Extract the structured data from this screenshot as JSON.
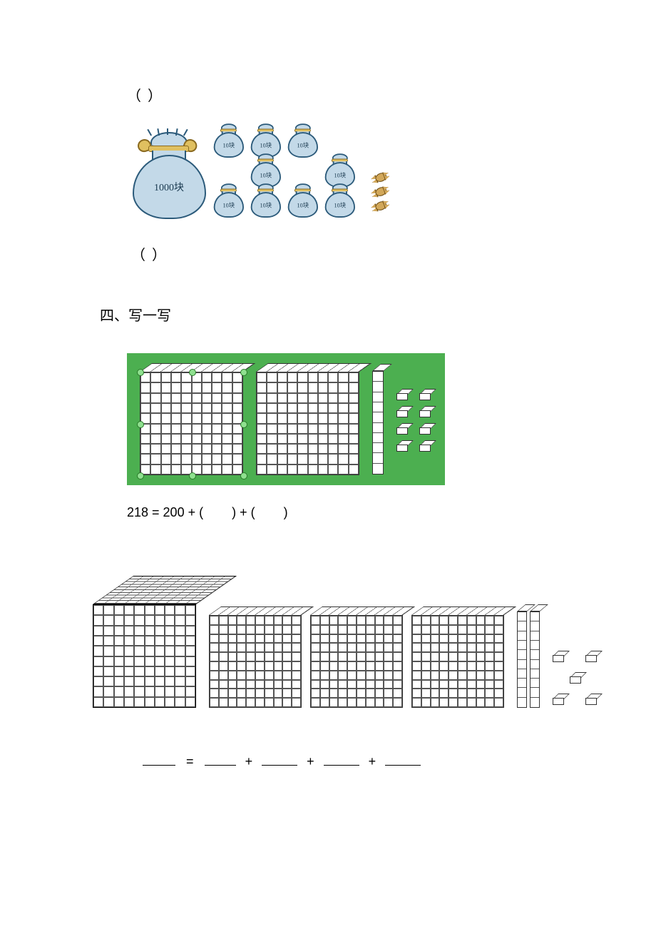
{
  "fill_blank": "（   ）",
  "bags": {
    "big_label": "1000块",
    "small_label": "10块",
    "big_count": 1,
    "small_count": 9,
    "candy_count": 3,
    "bag_fill": "#c3d9e8",
    "bag_stroke": "#2b5a7a",
    "tie_fill": "#e0c060",
    "tie_stroke": "#8a6a20",
    "candy_fill": "#d2a85a",
    "candy_stroke": "#6a4a10"
  },
  "section4": {
    "title": "四、写一写"
  },
  "q1": {
    "panel_bg": "#4caf50",
    "hundreds": 2,
    "tens_rods": 1,
    "unit_rows": 4,
    "unit_cols": 2,
    "equation_prefix": "218 = 200 + (",
    "equation_mid": ")  + (",
    "equation_suffix": ")",
    "flat_size": 145,
    "rod_height": 145,
    "rod_width": 16
  },
  "q2": {
    "thousands": 1,
    "hundreds": 3,
    "tens_rods": 2,
    "units": 5,
    "cube_size": 145,
    "flat_size": 130,
    "rod_height": 135,
    "rod_width": 14,
    "equation_parts": [
      "=",
      "+",
      "+",
      "+"
    ]
  },
  "colors": {
    "page_bg": "#ffffff",
    "text": "#000000",
    "grid_line": "#555555",
    "block_fill": "#ffffff",
    "block_border": "#333333"
  }
}
